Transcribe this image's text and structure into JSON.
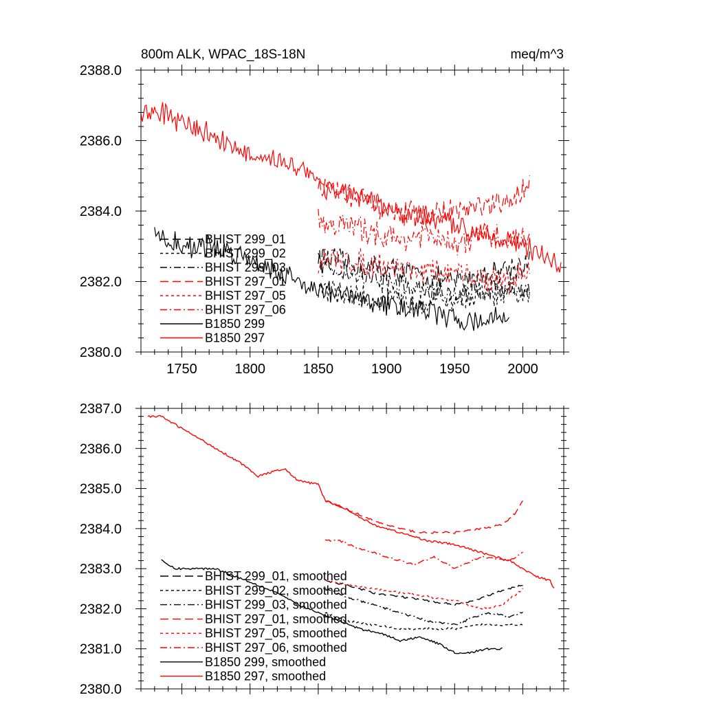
{
  "chart_data": [
    {
      "type": "line",
      "title": "800m ALK, WPAC_18S-18N",
      "units": "meq/m^3",
      "xlim": [
        1720,
        2030
      ],
      "ylim": [
        2380,
        2388
      ],
      "xticks": [
        1750,
        1800,
        1850,
        1900,
        1950,
        2000
      ],
      "xtick_labels": [
        "1750",
        "1800",
        "1850",
        "1900",
        "1950",
        "2000"
      ],
      "yticks": [
        2380,
        2382,
        2384,
        2386,
        2388
      ],
      "ytick_labels": [
        "2380.0",
        "2382.0",
        "2384.0",
        "2386.0",
        "2388.0"
      ],
      "legend_position": "bottom-left",
      "noisy": true,
      "series": [
        {
          "name": "BHIST 299_01",
          "color": "#000000",
          "dash": "long-dash",
          "x": [
            1850,
            1870,
            1890,
            1910,
            1930,
            1950,
            1970,
            1990,
            2005
          ],
          "y": [
            2382.7,
            2382.5,
            2382.4,
            2382.3,
            2382.1,
            2382.0,
            2382.2,
            2382.4,
            2382.5
          ]
        },
        {
          "name": "BHIST 299_02",
          "color": "#000000",
          "dash": "short-dash",
          "x": [
            1850,
            1870,
            1890,
            1910,
            1930,
            1950,
            1970,
            1990,
            2005
          ],
          "y": [
            2381.8,
            2381.6,
            2381.5,
            2381.4,
            2381.5,
            2381.5,
            2381.6,
            2381.6,
            2381.6
          ]
        },
        {
          "name": "BHIST 299_03",
          "color": "#000000",
          "dash": "dash-dot",
          "x": [
            1850,
            1870,
            1890,
            1910,
            1930,
            1950,
            1970,
            1990,
            2005
          ],
          "y": [
            2382.5,
            2382.3,
            2382.1,
            2381.9,
            2381.7,
            2381.6,
            2381.8,
            2381.8,
            2381.8
          ]
        },
        {
          "name": "BHIST 297_01",
          "color": "#ff0000",
          "dash": "long-dash",
          "x": [
            1850,
            1870,
            1890,
            1910,
            1930,
            1950,
            1970,
            1990,
            2000,
            2005
          ],
          "y": [
            2384.7,
            2384.5,
            2384.2,
            2383.9,
            2383.9,
            2384.0,
            2384.1,
            2384.2,
            2384.6,
            2384.9
          ]
        },
        {
          "name": "BHIST 297_05",
          "color": "#ff0000",
          "dash": "short-dash",
          "x": [
            1850,
            1870,
            1890,
            1910,
            1930,
            1950,
            1970,
            1990,
            2005
          ],
          "y": [
            2382.6,
            2382.6,
            2382.5,
            2382.4,
            2382.3,
            2382.2,
            2382.1,
            2382.0,
            2382.4
          ]
        },
        {
          "name": "BHIST 297_06",
          "color": "#ff0000",
          "dash": "dash-dot",
          "x": [
            1850,
            1870,
            1890,
            1910,
            1930,
            1950,
            1970,
            1990,
            2005
          ],
          "y": [
            2383.7,
            2383.6,
            2383.4,
            2383.2,
            2383.3,
            2383.0,
            2383.3,
            2383.2,
            2383.4
          ]
        },
        {
          "name": "B1850 299",
          "color": "#000000",
          "dash": "solid",
          "x": [
            1730,
            1750,
            1770,
            1790,
            1810,
            1830,
            1850,
            1870,
            1890,
            1910,
            1930,
            1950,
            1970,
            1990
          ],
          "y": [
            2383.3,
            2383.0,
            2383.0,
            2382.8,
            2382.5,
            2382.1,
            2381.8,
            2381.6,
            2381.4,
            2381.3,
            2381.2,
            2380.9,
            2380.9,
            2381.0
          ]
        },
        {
          "name": "B1850 297",
          "color": "#ff0000",
          "dash": "solid",
          "x": [
            1720,
            1735,
            1750,
            1770,
            1790,
            1810,
            1820,
            1840,
            1855,
            1870,
            1890,
            1910,
            1930,
            1950,
            1970,
            1990,
            2010,
            2020,
            2028
          ],
          "y": [
            2386.8,
            2386.8,
            2386.5,
            2386.2,
            2385.8,
            2385.3,
            2385.5,
            2385.2,
            2384.7,
            2384.5,
            2384.2,
            2383.9,
            2383.8,
            2383.6,
            2383.4,
            2383.2,
            2382.8,
            2382.7,
            2382.4
          ]
        }
      ]
    },
    {
      "type": "line",
      "title": "",
      "xlim": [
        1720,
        2030
      ],
      "ylim": [
        2380,
        2387
      ],
      "xticks": [
        1750,
        1800,
        1850,
        1900,
        1950,
        2000
      ],
      "xtick_labels": [],
      "yticks": [
        2380,
        2381,
        2382,
        2383,
        2384,
        2385,
        2386,
        2387
      ],
      "ytick_labels": [
        "2380.0",
        "2381.0",
        "2382.0",
        "2383.0",
        "2384.0",
        "2385.0",
        "2386.0",
        "2387.0"
      ],
      "legend_position": "bottom-left",
      "noisy": false,
      "series": [
        {
          "name": "BHIST 299_01, smoothed",
          "color": "#000000",
          "dash": "long-dash",
          "x": [
            1855,
            1870,
            1890,
            1910,
            1930,
            1950,
            1965,
            1980,
            1990,
            2000
          ],
          "y": [
            2382.7,
            2382.6,
            2382.4,
            2382.3,
            2382.2,
            2382.1,
            2382.2,
            2382.4,
            2382.5,
            2382.6
          ]
        },
        {
          "name": "BHIST 299_02, smoothed",
          "color": "#000000",
          "dash": "short-dash",
          "x": [
            1855,
            1870,
            1890,
            1910,
            1930,
            1950,
            1970,
            1985,
            2000
          ],
          "y": [
            2381.9,
            2381.7,
            2381.6,
            2381.5,
            2381.5,
            2381.5,
            2381.6,
            2381.6,
            2381.6
          ]
        },
        {
          "name": "BHIST 299_03, smoothed",
          "color": "#000000",
          "dash": "dash-dot",
          "x": [
            1855,
            1870,
            1890,
            1910,
            1930,
            1950,
            1965,
            1975,
            1990,
            2000
          ],
          "y": [
            2382.5,
            2382.3,
            2382.1,
            2381.9,
            2381.7,
            2381.6,
            2381.8,
            2381.9,
            2381.8,
            2381.9
          ]
        },
        {
          "name": "BHIST 297_01, smoothed",
          "color": "#ff0000",
          "dash": "long-dash",
          "x": [
            1855,
            1870,
            1890,
            1910,
            1925,
            1950,
            1970,
            1985,
            1995,
            2000
          ],
          "y": [
            2384.7,
            2384.5,
            2384.2,
            2384.0,
            2383.9,
            2383.9,
            2384.0,
            2384.1,
            2384.4,
            2384.7
          ]
        },
        {
          "name": "BHIST 297_05, smoothed",
          "color": "#ff0000",
          "dash": "short-dash",
          "x": [
            1855,
            1870,
            1890,
            1910,
            1930,
            1950,
            1970,
            1985,
            2000
          ],
          "y": [
            2382.7,
            2382.6,
            2382.5,
            2382.4,
            2382.3,
            2382.2,
            2382.0,
            2382.1,
            2382.5
          ]
        },
        {
          "name": "BHIST 297_06, smoothed",
          "color": "#ff0000",
          "dash": "dash-dot",
          "x": [
            1855,
            1865,
            1880,
            1900,
            1920,
            1935,
            1950,
            1970,
            1990,
            2000
          ],
          "y": [
            2383.7,
            2383.7,
            2383.5,
            2383.3,
            2383.1,
            2383.3,
            2383.0,
            2383.3,
            2383.2,
            2383.4
          ]
        },
        {
          "name": "B1850 299, smoothed",
          "color": "#000000",
          "dash": "solid",
          "x": [
            1735,
            1745,
            1760,
            1775,
            1790,
            1805,
            1820,
            1835,
            1850,
            1865,
            1880,
            1895,
            1910,
            1925,
            1940,
            1950,
            1960,
            1975,
            1985
          ],
          "y": [
            2383.2,
            2383.0,
            2383.0,
            2383.0,
            2382.8,
            2382.6,
            2382.4,
            2382.1,
            2381.9,
            2381.7,
            2381.5,
            2381.4,
            2381.2,
            2381.3,
            2381.1,
            2380.9,
            2380.9,
            2381.0,
            2381.0
          ]
        },
        {
          "name": "B1850 297, smoothed",
          "color": "#ff0000",
          "dash": "solid",
          "x": [
            1725,
            1735,
            1750,
            1765,
            1780,
            1795,
            1805,
            1815,
            1825,
            1835,
            1850,
            1855,
            1870,
            1890,
            1910,
            1930,
            1950,
            1970,
            1990,
            2000,
            2010,
            2020,
            2023
          ],
          "y": [
            2386.8,
            2386.8,
            2386.5,
            2386.2,
            2385.9,
            2385.6,
            2385.3,
            2385.4,
            2385.5,
            2385.2,
            2385.1,
            2384.7,
            2384.5,
            2384.1,
            2383.9,
            2383.7,
            2383.6,
            2383.4,
            2383.2,
            2383.0,
            2382.8,
            2382.7,
            2382.5
          ]
        }
      ]
    }
  ]
}
